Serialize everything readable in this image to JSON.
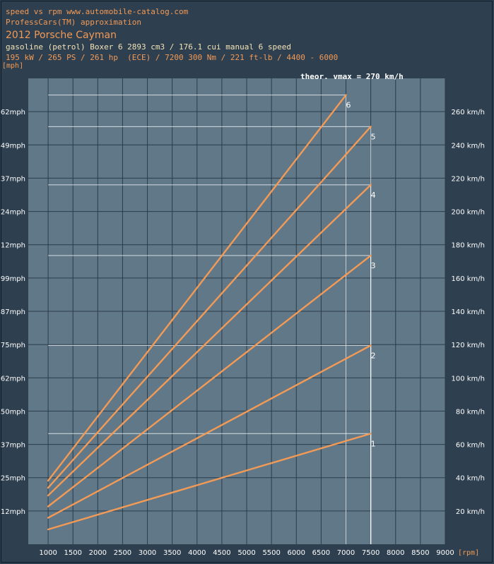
{
  "header": {
    "line1": "speed vs rpm www.automobile-catalog.com",
    "line2": "ProfessCars(TM) approximation",
    "model": "2012 Porsche Cayman",
    "engine": "gasoline (petrol) Boxer 6 2893 cm3 / 176.1 cui manual 6 speed",
    "power": "195 kW / 265 PS / 261 hp  (ECE) / 7200 300 Nm / 221 ft-lb / 4400 - 6000"
  },
  "colors": {
    "page_bg": "#2e3f4f",
    "plot_bg": "#607888",
    "grid": "#2b3c4a",
    "curve": "#f29a56",
    "text_orange": "#f29a56",
    "text_cream": "#f3e3b6",
    "limit_line": "#ffffff"
  },
  "chart_data": {
    "type": "line",
    "x_unit_label": "[rpm]",
    "y_left_unit_label": "[mph]",
    "vmax_label": "theor. vmax = 270 km/h",
    "xlim": [
      600,
      9000
    ],
    "ylim_kmh": [
      0,
      280
    ],
    "x_ticks": [
      1000,
      1500,
      2000,
      2500,
      3000,
      3500,
      4000,
      4500,
      5000,
      5500,
      6000,
      6500,
      7000,
      7500,
      8000,
      8500,
      9000
    ],
    "y_left_ticks": [
      {
        "kmh": 20,
        "label": "12mph"
      },
      {
        "kmh": 40,
        "label": "25mph"
      },
      {
        "kmh": 60,
        "label": "37mph"
      },
      {
        "kmh": 80,
        "label": "50mph"
      },
      {
        "kmh": 100,
        "label": "62mph"
      },
      {
        "kmh": 120,
        "label": "75mph"
      },
      {
        "kmh": 140,
        "label": "87mph"
      },
      {
        "kmh": 160,
        "label": "99mph"
      },
      {
        "kmh": 180,
        "label": "112mph"
      },
      {
        "kmh": 200,
        "label": "124mph"
      },
      {
        "kmh": 220,
        "label": "137mph"
      },
      {
        "kmh": 240,
        "label": "149mph"
      },
      {
        "kmh": 260,
        "label": "162mph"
      }
    ],
    "y_right_ticks": [
      {
        "kmh": 20,
        "label": "20 km/h"
      },
      {
        "kmh": 40,
        "label": "40 km/h"
      },
      {
        "kmh": 60,
        "label": "60 km/h"
      },
      {
        "kmh": 80,
        "label": "80 km/h"
      },
      {
        "kmh": 100,
        "label": "100 km/h"
      },
      {
        "kmh": 120,
        "label": "120 km/h"
      },
      {
        "kmh": 140,
        "label": "140 km/h"
      },
      {
        "kmh": 160,
        "label": "160 km/h"
      },
      {
        "kmh": 180,
        "label": "180 km/h"
      },
      {
        "kmh": 200,
        "label": "200 km/h"
      },
      {
        "kmh": 220,
        "label": "220 km/h"
      },
      {
        "kmh": 240,
        "label": "240 km/h"
      },
      {
        "kmh": 260,
        "label": "260 km/h"
      }
    ],
    "limit_x_start": 1000,
    "series": [
      {
        "name": "1",
        "x": [
          1000,
          7500
        ],
        "y_kmh": [
          8.9,
          66.5
        ]
      },
      {
        "name": "2",
        "x": [
          1000,
          7500
        ],
        "y_kmh": [
          15.9,
          119.5
        ]
      },
      {
        "name": "3",
        "x": [
          1000,
          7500
        ],
        "y_kmh": [
          22.7,
          173.5
        ]
      },
      {
        "name": "4",
        "x": [
          1000,
          7500
        ],
        "y_kmh": [
          29.3,
          216
        ]
      },
      {
        "name": "5",
        "x": [
          1000,
          7500
        ],
        "y_kmh": [
          33.9,
          251
        ]
      },
      {
        "name": "6",
        "x": [
          1000,
          7000
        ],
        "y_kmh": [
          38.2,
          270
        ]
      }
    ]
  }
}
